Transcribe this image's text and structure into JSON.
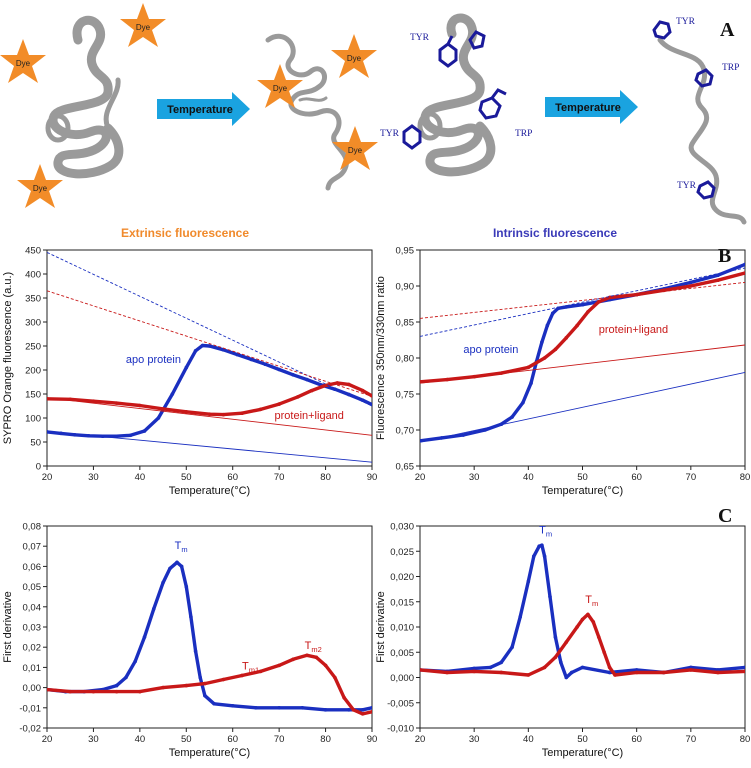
{
  "panel_a": {
    "letter": "A",
    "arrow_label": "Temperature",
    "dye_label": "Dye",
    "residues": {
      "tyr": "TYR",
      "trp": "TRP"
    },
    "colors": {
      "dye": "#f28c28",
      "arrow": "#1aa3e0",
      "protein": "#9a9a9a",
      "residue": "#1a1a9a"
    }
  },
  "headers": {
    "extrinsic": "Extrinsic fluorescence",
    "intrinsic": "Intrinsic fluorescence",
    "extrinsic_color": "#f08a2c",
    "intrinsic_color": "#3a3ab8"
  },
  "panel_letters": {
    "b": "B",
    "c": "C"
  },
  "colors": {
    "apo": "#1a2fc0",
    "ligand": "#c81818"
  },
  "chart_data": [
    {
      "id": "b-left",
      "type": "line",
      "title": "Extrinsic fluorescence",
      "xlabel": "Temperature(°C)",
      "ylabel": "SYPRO Orange fluorescence (a.u.)",
      "xlim": [
        20,
        90
      ],
      "ylim": [
        0,
        450
      ],
      "xticks": [
        "20",
        "30",
        "40",
        "50",
        "60",
        "70",
        "80",
        "90"
      ],
      "yticks": [
        "0",
        "50",
        "100",
        "150",
        "200",
        "250",
        "300",
        "350",
        "400",
        "450"
      ],
      "series": [
        {
          "name": "apo protein",
          "color": "#1a2fc0",
          "style": "dots",
          "x": [
            20,
            23,
            26,
            29,
            32,
            35,
            38,
            41,
            44,
            47,
            50,
            52,
            53.5,
            55,
            58,
            61,
            64,
            67,
            70,
            73,
            76,
            79,
            82,
            85,
            88,
            90
          ],
          "y": [
            71,
            68,
            65,
            63,
            62,
            62,
            64,
            73,
            100,
            150,
            205,
            240,
            251,
            250,
            242,
            232,
            222,
            212,
            201,
            190,
            180,
            169,
            160,
            149,
            137,
            128
          ]
        },
        {
          "name": "protein+ligand",
          "color": "#c81818",
          "style": "dots",
          "x": [
            20,
            25,
            30,
            35,
            40,
            45,
            50,
            55,
            58,
            62,
            66,
            70,
            74,
            77,
            80,
            82.5,
            85,
            88,
            90
          ],
          "y": [
            140,
            139,
            135,
            131,
            126,
            119,
            113,
            108,
            107,
            110,
            118,
            129,
            144,
            157,
            168,
            173,
            170,
            157,
            146
          ]
        },
        {
          "name": "apo baseline 1",
          "color": "#1a2fc0",
          "style": "thin",
          "x": [
            20,
            90
          ],
          "y": [
            72,
            8
          ]
        },
        {
          "name": "apo baseline 2",
          "color": "#1a2fc0",
          "style": "dash",
          "x": [
            20,
            90
          ],
          "y": [
            445,
            125
          ]
        },
        {
          "name": "ligand baseline 1",
          "color": "#c81818",
          "style": "thin",
          "x": [
            20,
            90
          ],
          "y": [
            142,
            64
          ]
        },
        {
          "name": "ligand baseline 2",
          "color": "#c81818",
          "style": "dash",
          "x": [
            20,
            90
          ],
          "y": [
            365,
            145
          ]
        }
      ],
      "annotations": [
        {
          "text": "apo protein",
          "x": 37,
          "y": 215,
          "color": "#1a2fc0"
        },
        {
          "text": "protein+ligand",
          "x": 69,
          "y": 98,
          "color": "#c81818"
        }
      ]
    },
    {
      "id": "b-right",
      "type": "line",
      "title": "Intrinsic fluorescence",
      "xlabel": "Temperature(°C)",
      "ylabel": "Fluorescence 350nm/330nm ratio",
      "xlim": [
        20,
        80
      ],
      "ylim": [
        0.65,
        0.95
      ],
      "xticks": [
        "20",
        "30",
        "40",
        "50",
        "60",
        "70",
        "80"
      ],
      "yticks": [
        "0,65",
        "0,70",
        "0,75",
        "0,80",
        "0,85",
        "0,90",
        "0,95"
      ],
      "series": [
        {
          "name": "apo protein",
          "color": "#1a2fc0",
          "style": "dots",
          "x": [
            20,
            24,
            28,
            32,
            35,
            37,
            39,
            40.5,
            41.5,
            42.5,
            43.5,
            44.5,
            45.5,
            47,
            50,
            55,
            60,
            65,
            70,
            75,
            80
          ],
          "y": [
            0.685,
            0.689,
            0.693,
            0.7,
            0.708,
            0.718,
            0.738,
            0.765,
            0.795,
            0.822,
            0.845,
            0.862,
            0.869,
            0.871,
            0.874,
            0.881,
            0.888,
            0.896,
            0.905,
            0.915,
            0.93
          ]
        },
        {
          "name": "protein+ligand",
          "color": "#c81818",
          "style": "dots",
          "x": [
            20,
            25,
            30,
            35,
            40,
            43,
            45,
            47,
            49,
            51,
            53,
            55,
            60,
            65,
            70,
            75,
            80
          ],
          "y": [
            0.767,
            0.77,
            0.774,
            0.779,
            0.787,
            0.8,
            0.812,
            0.828,
            0.845,
            0.864,
            0.878,
            0.884,
            0.888,
            0.894,
            0.9,
            0.908,
            0.918
          ]
        },
        {
          "name": "apo baseline 1",
          "color": "#1a2fc0",
          "style": "thin",
          "x": [
            20,
            80
          ],
          "y": [
            0.683,
            0.78
          ]
        },
        {
          "name": "apo baseline 2",
          "color": "#1a2fc0",
          "style": "dash",
          "x": [
            20,
            80
          ],
          "y": [
            0.83,
            0.925
          ]
        },
        {
          "name": "ligand baseline 1",
          "color": "#c81818",
          "style": "thin",
          "x": [
            20,
            80
          ],
          "y": [
            0.765,
            0.818
          ]
        },
        {
          "name": "ligand baseline 2",
          "color": "#c81818",
          "style": "dash",
          "x": [
            20,
            80
          ],
          "y": [
            0.855,
            0.905
          ]
        }
      ],
      "annotations": [
        {
          "text": "apo protein",
          "x": 28,
          "y": 0.807,
          "color": "#1a2fc0"
        },
        {
          "text": "protein+ligand",
          "x": 53,
          "y": 0.835,
          "color": "#c81818"
        }
      ]
    },
    {
      "id": "c-left",
      "type": "line",
      "title": "",
      "xlabel": "Temperature(°C)",
      "ylabel": "First derivative",
      "xlim": [
        20,
        90
      ],
      "ylim": [
        -0.02,
        0.08
      ],
      "xticks": [
        "20",
        "30",
        "40",
        "50",
        "60",
        "70",
        "80",
        "90"
      ],
      "yticks": [
        "-0,02",
        "-0,01",
        "0,00",
        "0,01",
        "0,02",
        "0,03",
        "0,04",
        "0,05",
        "0,06",
        "0,07",
        "0,08"
      ],
      "series": [
        {
          "name": "apo protein",
          "color": "#1a2fc0",
          "style": "dots",
          "x": [
            20,
            24,
            28,
            32,
            35,
            37,
            39,
            41,
            43,
            45,
            46.5,
            48,
            49,
            50,
            51,
            52,
            53,
            54,
            56,
            60,
            65,
            70,
            75,
            80,
            85,
            88,
            90
          ],
          "y": [
            -0.001,
            -0.002,
            -0.002,
            -0.001,
            0.001,
            0.005,
            0.013,
            0.025,
            0.039,
            0.052,
            0.059,
            0.062,
            0.06,
            0.05,
            0.035,
            0.018,
            0.005,
            -0.004,
            -0.008,
            -0.009,
            -0.01,
            -0.01,
            -0.01,
            -0.011,
            -0.011,
            -0.011,
            -0.01
          ]
        },
        {
          "name": "protein+ligand",
          "color": "#c81818",
          "style": "dots",
          "x": [
            20,
            25,
            30,
            35,
            40,
            45,
            50,
            54,
            58,
            62,
            66,
            70,
            73,
            76,
            78,
            80,
            82,
            84,
            86,
            88,
            90
          ],
          "y": [
            -0.001,
            -0.002,
            -0.002,
            -0.002,
            -0.002,
            0.0,
            0.001,
            0.002,
            0.004,
            0.006,
            0.008,
            0.011,
            0.014,
            0.016,
            0.015,
            0.011,
            0.005,
            -0.005,
            -0.011,
            -0.013,
            -0.012
          ]
        }
      ],
      "annotations": [
        {
          "text": "T",
          "sub": "m",
          "x": 47.5,
          "y": 0.0685,
          "color": "#1a2fc0"
        },
        {
          "text": "T",
          "sub": "m1",
          "x": 62,
          "y": 0.009,
          "color": "#c81818"
        },
        {
          "text": "T",
          "sub": "m2",
          "x": 75.5,
          "y": 0.019,
          "color": "#c81818"
        }
      ]
    },
    {
      "id": "c-right",
      "type": "line",
      "title": "",
      "xlabel": "Temperature(°C)",
      "ylabel": "First derivative",
      "xlim": [
        20,
        80
      ],
      "ylim": [
        -0.01,
        0.03
      ],
      "xticks": [
        "20",
        "30",
        "40",
        "50",
        "60",
        "70",
        "80"
      ],
      "yticks": [
        "-0,010",
        "-0,005",
        "0,000",
        "0,005",
        "0,010",
        "0,015",
        "0,020",
        "0,025",
        "0,030"
      ],
      "series": [
        {
          "name": "apo protein",
          "color": "#1a2fc0",
          "style": "dots",
          "x": [
            20,
            25,
            30,
            33,
            35,
            37,
            38.5,
            40,
            41,
            42,
            42.5,
            43,
            44,
            45,
            46,
            47,
            48,
            50,
            55,
            60,
            65,
            70,
            75,
            80
          ],
          "y": [
            0.0015,
            0.0012,
            0.0018,
            0.002,
            0.003,
            0.006,
            0.012,
            0.019,
            0.024,
            0.026,
            0.0262,
            0.024,
            0.016,
            0.008,
            0.003,
            0.0,
            0.001,
            0.002,
            0.001,
            0.0015,
            0.001,
            0.002,
            0.0015,
            0.002
          ]
        },
        {
          "name": "protein+ligand",
          "color": "#c81818",
          "style": "dots",
          "x": [
            20,
            25,
            30,
            35,
            40,
            43,
            45,
            47,
            49,
            50,
            51,
            52,
            53,
            54,
            55,
            56,
            60,
            65,
            70,
            75,
            80
          ],
          "y": [
            0.0015,
            0.001,
            0.0012,
            0.001,
            0.0005,
            0.002,
            0.004,
            0.007,
            0.01,
            0.0115,
            0.0125,
            0.011,
            0.008,
            0.005,
            0.002,
            0.0005,
            0.001,
            0.001,
            0.0015,
            0.001,
            0.0012
          ]
        }
      ],
      "annotations": [
        {
          "text": "T",
          "sub": "m",
          "x": 42,
          "y": 0.0285,
          "color": "#1a2fc0"
        },
        {
          "text": "T",
          "sub": "m",
          "x": 50.5,
          "y": 0.0148,
          "color": "#c81818"
        }
      ]
    }
  ]
}
